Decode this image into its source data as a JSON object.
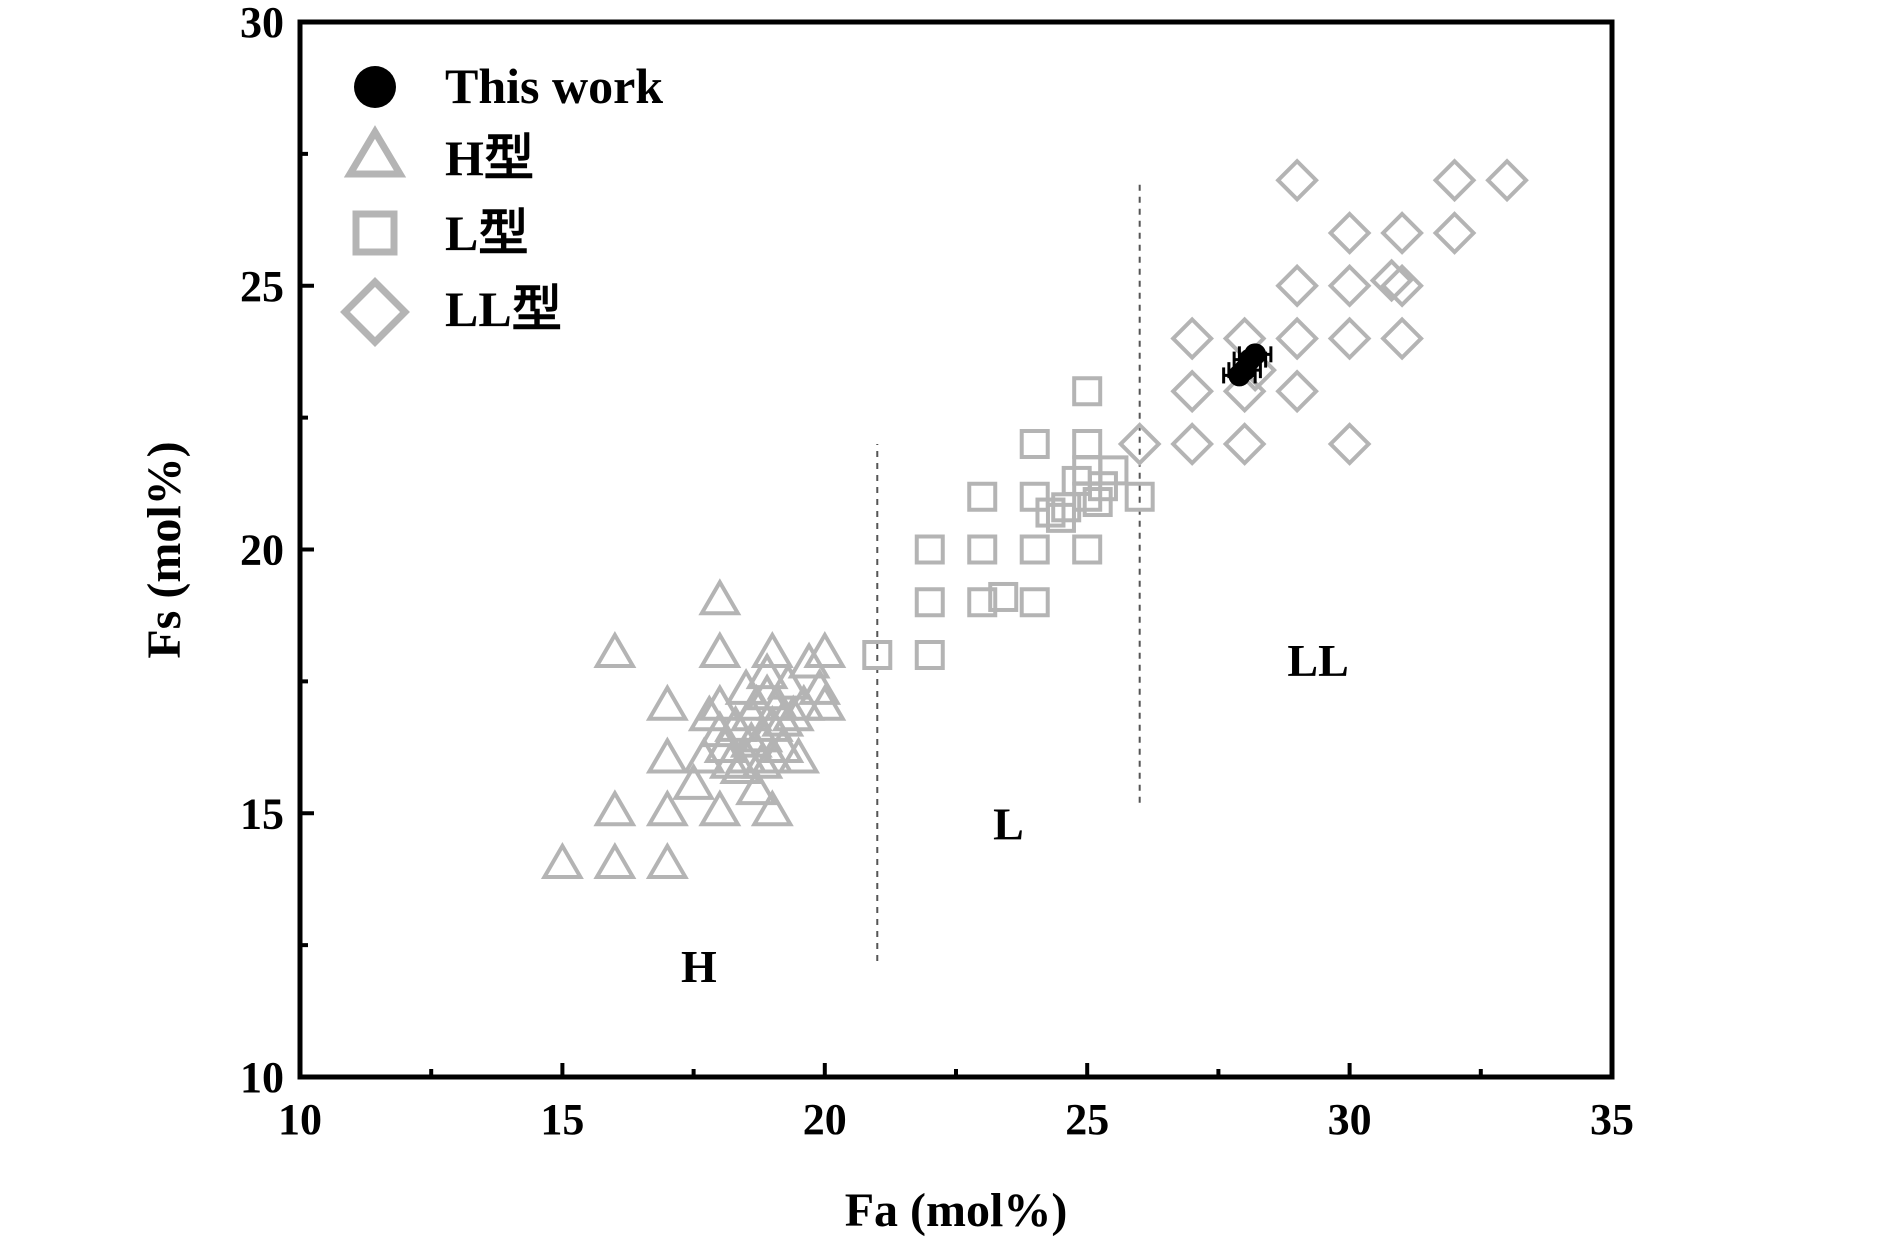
{
  "chart_data": {
    "type": "scatter",
    "xlabel": "Fa (mol%)",
    "ylabel": "Fs (mol%)",
    "xlim": [
      10,
      35
    ],
    "ylim": [
      10,
      30
    ],
    "x_ticks": [
      "10",
      "15",
      "20",
      "25",
      "30",
      "35"
    ],
    "y_ticks": [
      "10",
      "15",
      "20",
      "25",
      "30"
    ],
    "x_tick_values": [
      10,
      15,
      20,
      25,
      30,
      35
    ],
    "y_tick_values": [
      10,
      15,
      20,
      25,
      30
    ],
    "grid": false,
    "legend_position": "top-left",
    "colors": {
      "this_work": "#000000",
      "reference": "#b4b4b4",
      "divider": "#555555"
    },
    "series": [
      {
        "name": "This work",
        "marker": "filled-circle",
        "points": [
          [
            28.0,
            23.4
          ],
          [
            28.1,
            23.6
          ],
          [
            28.2,
            23.7
          ],
          [
            27.9,
            23.3
          ]
        ],
        "error_bars": true
      },
      {
        "name": "H型",
        "marker": "triangle",
        "points": [
          [
            15,
            14
          ],
          [
            16,
            14
          ],
          [
            17,
            14
          ],
          [
            16,
            15
          ],
          [
            17,
            15
          ],
          [
            18,
            15
          ],
          [
            19,
            15
          ],
          [
            17,
            16
          ],
          [
            17.5,
            15.5
          ],
          [
            16,
            18
          ],
          [
            17,
            17
          ],
          [
            18,
            19
          ],
          [
            18,
            18
          ],
          [
            18,
            17
          ],
          [
            19,
            18
          ],
          [
            20,
            18
          ],
          [
            20,
            17
          ],
          [
            19.7,
            17.8
          ],
          [
            19.5,
            16
          ],
          [
            18.7,
            15.4
          ],
          [
            17.7,
            16
          ],
          [
            17.8,
            16.8
          ],
          [
            18.1,
            16.2
          ],
          [
            18.3,
            16.6
          ],
          [
            18.5,
            16.0
          ],
          [
            18.6,
            16.8
          ],
          [
            18.8,
            16.4
          ],
          [
            18.9,
            17.2
          ],
          [
            19.0,
            16.6
          ],
          [
            19.1,
            17.0
          ],
          [
            19.2,
            16.2
          ],
          [
            19.3,
            17.4
          ],
          [
            19.4,
            16.8
          ],
          [
            18.4,
            15.8
          ],
          [
            18.2,
            15.9
          ],
          [
            18.7,
            17.0
          ],
          [
            19.0,
            16.0
          ],
          [
            18.9,
            17.6
          ],
          [
            19.6,
            17.0
          ],
          [
            19.9,
            17.3
          ],
          [
            18.6,
            16.3
          ],
          [
            18.8,
            15.9
          ],
          [
            19.2,
            16.7
          ],
          [
            18.0,
            16.5
          ],
          [
            18.5,
            17.3
          ]
        ]
      },
      {
        "name": "L型",
        "marker": "square",
        "points": [
          [
            21,
            18
          ],
          [
            22,
            18
          ],
          [
            22,
            19
          ],
          [
            23,
            19
          ],
          [
            24,
            19
          ],
          [
            23.4,
            19.1
          ],
          [
            22,
            20
          ],
          [
            23,
            20
          ],
          [
            24,
            20
          ],
          [
            25,
            20
          ],
          [
            23,
            21
          ],
          [
            24,
            21
          ],
          [
            24,
            22
          ],
          [
            25,
            22
          ],
          [
            25,
            23
          ],
          [
            24.3,
            20.7
          ],
          [
            24.6,
            20.8
          ],
          [
            25.0,
            21.0
          ],
          [
            25.3,
            21.2
          ],
          [
            24.8,
            21.3
          ],
          [
            25.5,
            21.5
          ],
          [
            26,
            21
          ],
          [
            25,
            21.5
          ],
          [
            24.5,
            20.6
          ],
          [
            25.2,
            20.9
          ]
        ]
      },
      {
        "name": "LL型",
        "marker": "diamond",
        "points": [
          [
            26,
            22
          ],
          [
            27,
            22
          ],
          [
            28,
            22
          ],
          [
            30,
            22
          ],
          [
            27,
            23
          ],
          [
            28,
            23
          ],
          [
            29,
            23
          ],
          [
            27,
            24
          ],
          [
            28,
            24
          ],
          [
            29,
            24
          ],
          [
            30,
            24
          ],
          [
            31,
            24
          ],
          [
            29,
            25
          ],
          [
            30,
            25
          ],
          [
            30.8,
            25.1
          ],
          [
            31,
            25
          ],
          [
            30,
            26
          ],
          [
            31,
            26
          ],
          [
            32,
            26
          ],
          [
            29,
            27
          ],
          [
            32,
            27
          ],
          [
            33,
            27
          ],
          [
            28.2,
            23.4
          ]
        ]
      }
    ],
    "vertical_dividers": [
      {
        "x": 21,
        "y_from": 12.2,
        "y_to": 22
      },
      {
        "x": 26,
        "y_from": 15.2,
        "y_to": 27
      }
    ],
    "region_labels": [
      {
        "text": "H",
        "x": 17.6,
        "y": 11.8
      },
      {
        "text": "L",
        "x": 23.5,
        "y": 14.5
      },
      {
        "text": "LL",
        "x": 29.4,
        "y": 17.6
      }
    ]
  }
}
